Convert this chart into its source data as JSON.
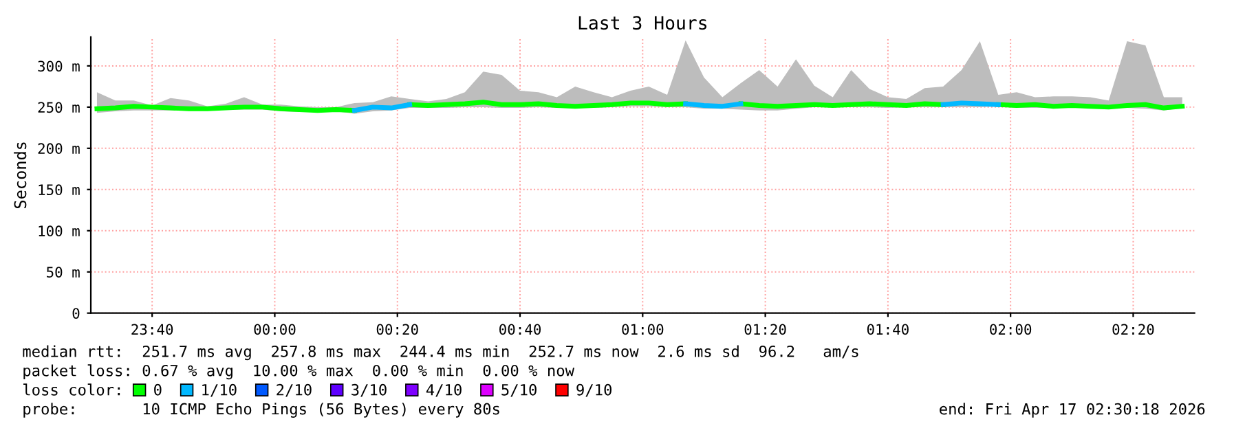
{
  "chart_data": {
    "type": "line",
    "title": "Last 3 Hours",
    "ylabel": "Seconds",
    "x": [
      "2026-04-16T23:31",
      "2026-04-16T23:34",
      "2026-04-16T23:37",
      "2026-04-16T23:40",
      "2026-04-16T23:43",
      "2026-04-16T23:46",
      "2026-04-16T23:49",
      "2026-04-16T23:52",
      "2026-04-16T23:55",
      "2026-04-16T23:58",
      "2026-04-17T00:01",
      "2026-04-17T00:04",
      "2026-04-17T00:07",
      "2026-04-17T00:10",
      "2026-04-17T00:13",
      "2026-04-17T00:16",
      "2026-04-17T00:19",
      "2026-04-17T00:22",
      "2026-04-17T00:25",
      "2026-04-17T00:28",
      "2026-04-17T00:31",
      "2026-04-17T00:34",
      "2026-04-17T00:37",
      "2026-04-17T00:40",
      "2026-04-17T00:43",
      "2026-04-17T00:46",
      "2026-04-17T00:49",
      "2026-04-17T00:52",
      "2026-04-17T00:55",
      "2026-04-17T00:58",
      "2026-04-17T01:01",
      "2026-04-17T01:04",
      "2026-04-17T01:07",
      "2026-04-17T01:10",
      "2026-04-17T01:13",
      "2026-04-17T01:16",
      "2026-04-17T01:19",
      "2026-04-17T01:22",
      "2026-04-17T01:25",
      "2026-04-17T01:28",
      "2026-04-17T01:31",
      "2026-04-17T01:34",
      "2026-04-17T01:37",
      "2026-04-17T01:40",
      "2026-04-17T01:43",
      "2026-04-17T01:46",
      "2026-04-17T01:49",
      "2026-04-17T01:52",
      "2026-04-17T01:55",
      "2026-04-17T01:58",
      "2026-04-17T02:01",
      "2026-04-17T02:04",
      "2026-04-17T02:07",
      "2026-04-17T02:10",
      "2026-04-17T02:13",
      "2026-04-17T02:16",
      "2026-04-17T02:19",
      "2026-04-17T02:22",
      "2026-04-17T02:25",
      "2026-04-17T02:28"
    ],
    "series": [
      {
        "name": "0",
        "color": "#00ff00",
        "values": [
          248,
          249,
          251,
          250,
          249,
          248,
          248,
          249,
          250,
          250,
          248,
          247,
          246,
          247,
          246,
          null,
          null,
          253,
          252,
          253,
          254,
          256,
          253,
          253,
          254,
          252,
          251,
          252,
          253,
          255,
          255,
          253,
          254,
          null,
          null,
          254,
          252,
          251,
          252,
          253,
          252,
          253,
          254,
          253,
          252,
          254,
          253,
          null,
          null,
          253,
          252,
          253,
          251,
          252,
          251,
          250,
          252,
          253,
          249,
          251
        ],
        "lower": [
          243,
          245,
          246,
          246,
          246,
          246,
          247,
          247,
          247,
          247,
          245,
          244,
          245,
          245,
          242,
          245,
          246,
          249,
          249,
          249,
          250,
          250,
          249,
          249,
          250,
          249,
          249,
          249,
          250,
          251,
          251,
          250,
          250,
          248,
          248,
          247,
          246,
          246,
          248,
          250,
          250,
          250,
          250,
          249,
          250,
          250,
          250,
          250,
          250,
          251,
          249,
          249,
          249,
          249,
          249,
          249,
          249,
          248,
          246,
          249
        ],
        "upper": [
          268,
          258,
          258,
          252,
          261,
          258,
          251,
          254,
          262,
          253,
          253,
          251,
          250,
          250,
          255,
          256,
          263,
          260,
          257,
          260,
          268,
          293,
          289,
          270,
          268,
          262,
          275,
          268,
          262,
          270,
          275,
          265,
          331,
          286,
          262,
          279,
          295,
          275,
          308,
          276,
          262,
          295,
          272,
          262,
          260,
          273,
          275,
          295,
          330,
          265,
          268,
          262,
          263,
          263,
          262,
          258,
          330,
          325,
          262,
          262
        ]
      },
      {
        "name": "1/10",
        "color": "#00b8ff",
        "values": [
          null,
          null,
          null,
          null,
          null,
          null,
          null,
          null,
          null,
          null,
          null,
          null,
          null,
          null,
          246,
          250,
          249,
          253,
          null,
          null,
          null,
          null,
          null,
          null,
          null,
          null,
          null,
          null,
          null,
          null,
          null,
          null,
          254,
          252,
          251,
          254,
          null,
          null,
          null,
          null,
          null,
          null,
          null,
          null,
          null,
          null,
          253,
          255,
          254,
          253,
          null,
          null,
          null,
          null,
          null,
          null,
          null,
          null,
          null,
          null
        ]
      },
      {
        "name": "2/10",
        "color": "#0059ff",
        "values": [
          null,
          null,
          null,
          null,
          null,
          null,
          null,
          null,
          null,
          null,
          null,
          null,
          null,
          null,
          null,
          null,
          null,
          null,
          null,
          null,
          null,
          null,
          null,
          null,
          null,
          null,
          null,
          null,
          null,
          null,
          null,
          null,
          null,
          null,
          null,
          null,
          null,
          null,
          null,
          null,
          null,
          null,
          null,
          null,
          null,
          null,
          null,
          null,
          null,
          null,
          null,
          null,
          null,
          null,
          null,
          null,
          null,
          null,
          null,
          null
        ]
      },
      {
        "name": "3/10",
        "color": "#5e00ff",
        "values": [
          null,
          null,
          null,
          null,
          null,
          null,
          null,
          null,
          null,
          null,
          null,
          null,
          null,
          null,
          null,
          null,
          null,
          null,
          null,
          null,
          null,
          null,
          null,
          null,
          null,
          null,
          null,
          null,
          null,
          null,
          null,
          null,
          null,
          null,
          null,
          null,
          null,
          null,
          null,
          null,
          null,
          null,
          null,
          null,
          null,
          null,
          null,
          null,
          null,
          null,
          null,
          null,
          null,
          null,
          null,
          null,
          null,
          null,
          null,
          null
        ]
      },
      {
        "name": "4/10",
        "color": "#7e00ff",
        "values": [
          null,
          null,
          null,
          null,
          null,
          null,
          null,
          null,
          null,
          null,
          null,
          null,
          null,
          null,
          null,
          null,
          null,
          null,
          null,
          null,
          null,
          null,
          null,
          null,
          null,
          null,
          null,
          null,
          null,
          null,
          null,
          null,
          null,
          null,
          null,
          null,
          null,
          null,
          null,
          null,
          null,
          null,
          null,
          null,
          null,
          null,
          null,
          null,
          null,
          null,
          null,
          null,
          null,
          null,
          null,
          null,
          null,
          null,
          null,
          null
        ]
      },
      {
        "name": "5/10",
        "color": "#dd00ff",
        "values": [
          null,
          null,
          null,
          null,
          null,
          null,
          null,
          null,
          null,
          null,
          null,
          null,
          null,
          null,
          null,
          null,
          null,
          null,
          null,
          null,
          null,
          null,
          null,
          null,
          null,
          null,
          null,
          null,
          null,
          null,
          null,
          null,
          null,
          null,
          null,
          null,
          null,
          null,
          null,
          null,
          null,
          null,
          null,
          null,
          null,
          null,
          null,
          null,
          null,
          null,
          null,
          null,
          null,
          null,
          null,
          null,
          null,
          null,
          null,
          null
        ]
      },
      {
        "name": "9/10",
        "color": "#ff0000",
        "values": [
          null,
          null,
          null,
          null,
          null,
          null,
          null,
          null,
          null,
          null,
          null,
          null,
          null,
          null,
          null,
          null,
          null,
          null,
          null,
          null,
          null,
          null,
          null,
          null,
          null,
          null,
          null,
          null,
          null,
          null,
          null,
          null,
          null,
          null,
          null,
          null,
          null,
          null,
          null,
          null,
          null,
          null,
          null,
          null,
          null,
          null,
          null,
          null,
          null,
          null,
          null,
          null,
          null,
          null,
          null,
          null,
          null,
          null,
          null,
          null
        ]
      }
    ],
    "xlim": [
      "2026-04-16T23:30",
      "2026-04-17T02:30"
    ],
    "xticks": [
      {
        "value": "2026-04-16T23:40",
        "label": "23:40"
      },
      {
        "value": "2026-04-17T00:00",
        "label": "00:00"
      },
      {
        "value": "2026-04-17T00:20",
        "label": "00:20"
      },
      {
        "value": "2026-04-17T00:40",
        "label": "00:40"
      },
      {
        "value": "2026-04-17T01:00",
        "label": "01:00"
      },
      {
        "value": "2026-04-17T01:20",
        "label": "01:20"
      },
      {
        "value": "2026-04-17T01:40",
        "label": "01:40"
      },
      {
        "value": "2026-04-17T02:00",
        "label": "02:00"
      },
      {
        "value": "2026-04-17T02:20",
        "label": "02:20"
      }
    ],
    "ylim": [
      0,
      335
    ],
    "yticks": [
      0,
      {
        "value": 50,
        "label": "50 m"
      },
      {
        "value": 100,
        "label": "100 m"
      },
      {
        "value": 150,
        "label": "150 m"
      },
      {
        "value": 200,
        "label": "200 m"
      },
      {
        "value": 250,
        "label": "250 m"
      },
      {
        "value": 300,
        "label": "300 m"
      }
    ],
    "grid": true,
    "legend": "bottom",
    "annotations": [
      "median rtt:  251.7 ms avg  257.8 ms max  244.4 ms min  252.7 ms now  2.6 ms sd  96.2   am/s",
      "packet loss: 0.67 % avg  10.00 % max  0.00 % min  0.00 % now",
      "loss color:",
      "probe:       10 ICMP Echo Pings (56 Bytes) every 80s",
      "end: Fri Apr 17 02:30:18 2026"
    ]
  }
}
